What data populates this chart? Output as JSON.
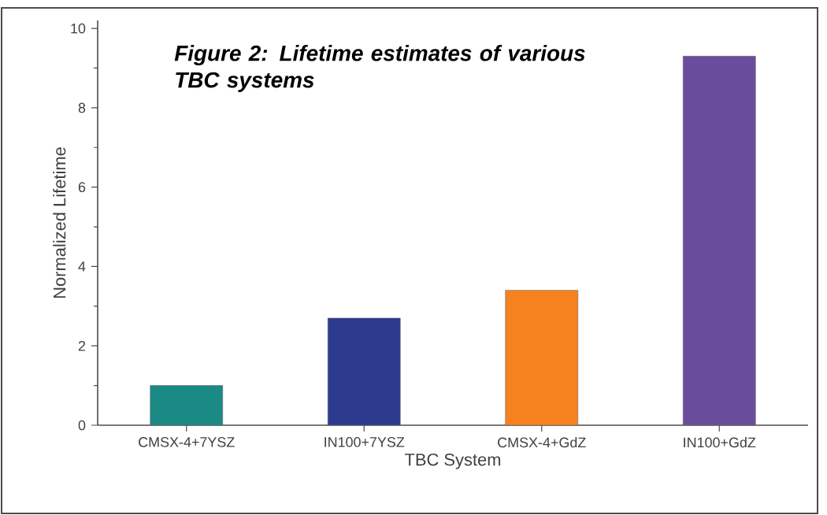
{
  "chart_data": {
    "type": "bar",
    "title": "Figure 2: Lifetime estimates of various TBC systems",
    "xlabel": "TBC System",
    "ylabel": "Normalized Lifetime",
    "categories": [
      "CMSX-4+7YSZ",
      "IN100+7YSZ",
      "CMSX-4+GdZ",
      "IN100+GdZ"
    ],
    "values": [
      1.0,
      2.7,
      3.4,
      9.3
    ],
    "colors": [
      "#1b8a84",
      "#2c3a8e",
      "#f5821f",
      "#6a4c9c"
    ],
    "ylim": [
      0,
      10.2
    ],
    "yticks": [
      0,
      2,
      4,
      6,
      8,
      10
    ],
    "grid": false
  }
}
